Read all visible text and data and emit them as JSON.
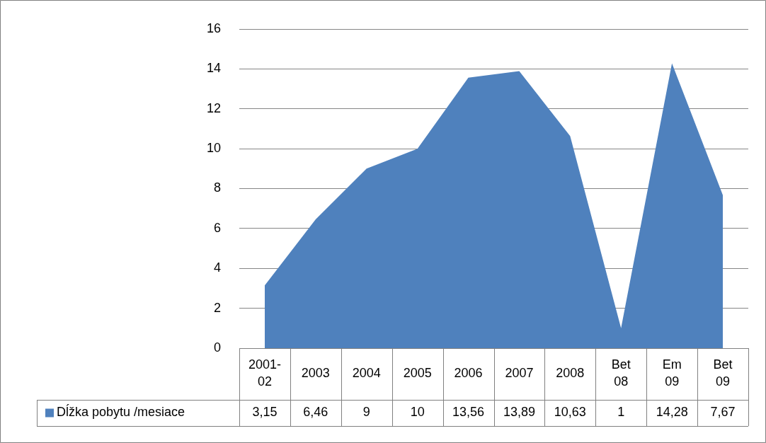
{
  "chart_data": {
    "type": "area",
    "categories": [
      "2001-02",
      "2003",
      "2004",
      "2005",
      "2006",
      "2007",
      "2008",
      "Bet 08",
      "Em 09",
      "Bet 09"
    ],
    "series": [
      {
        "name": "Dĺžka pobytu /mesiace",
        "color": "#4f81bd",
        "values": [
          3.15,
          6.46,
          9,
          10,
          13.56,
          13.89,
          10.63,
          1,
          14.28,
          7.67
        ],
        "value_labels": [
          "3,15",
          "6,46",
          "9",
          "10",
          "13,56",
          "13,89",
          "10,63",
          "1",
          "14,28",
          "7,67"
        ]
      }
    ],
    "ylim": [
      0,
      16
    ],
    "yticks": [
      0,
      2,
      4,
      6,
      8,
      10,
      12,
      14,
      16
    ],
    "grid": "y",
    "legend": "bottom",
    "marker": "none"
  }
}
